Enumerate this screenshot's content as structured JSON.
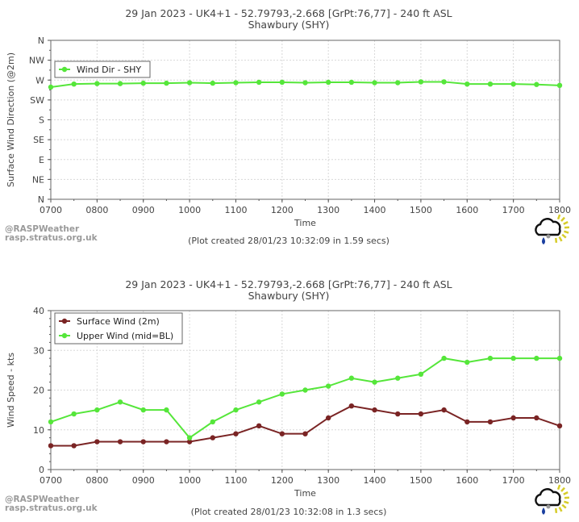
{
  "chart_data": [
    {
      "type": "line",
      "title": "29 Jan 2023 - UK4+1 - 52.79793,-2.668 [GrPt:76,77]  - 240 ft ASL",
      "subtitle": "Shawbury (SHY)",
      "xlabel": "Time",
      "ylabel": "Surface Wind Direction (@2m)",
      "x_tick_labels": [
        "0700",
        "0800",
        "0900",
        "1000",
        "1100",
        "1200",
        "1300",
        "1400",
        "1500",
        "1600",
        "1700",
        "1800"
      ],
      "y_tick_labels": [
        "N",
        "NE",
        "E",
        "SE",
        "S",
        "SW",
        "W",
        "NW",
        "N"
      ],
      "xlim": [
        7,
        18
      ],
      "ylim": [
        0,
        360
      ],
      "legend_position": "top-left",
      "series": [
        {
          "name": "Wind Dir - SHY",
          "color": "#55e63a",
          "x": [
            7,
            7.5,
            8,
            8.5,
            9,
            9.5,
            10,
            10.5,
            11,
            11.5,
            12,
            12.5,
            13,
            13.5,
            14,
            14.5,
            15,
            15.5,
            16,
            16.5,
            17,
            17.5,
            18
          ],
          "values": [
            254,
            261,
            262,
            262,
            263,
            263,
            264,
            263,
            264,
            265,
            265,
            264,
            265,
            265,
            264,
            264,
            266,
            266,
            261,
            261,
            261,
            260,
            258
          ]
        }
      ],
      "watermark": [
        "@RASPWeather",
        "rasp.stratus.org.uk"
      ],
      "footer": "(Plot created 28/01/23 10:32:09 in 1.59 secs)"
    },
    {
      "type": "line",
      "title": "29 Jan 2023 - UK4+1 - 52.79793,-2.668 [GrPt:76,77]  - 240 ft ASL",
      "subtitle": "Shawbury (SHY)",
      "xlabel": "Time",
      "ylabel": "Wind Speed - kts",
      "x_tick_labels": [
        "0700",
        "0800",
        "0900",
        "1000",
        "1100",
        "1200",
        "1300",
        "1400",
        "1500",
        "1600",
        "1700",
        "1800"
      ],
      "y_tick_labels": [
        "0",
        "10",
        "20",
        "30",
        "40"
      ],
      "xlim": [
        7,
        18
      ],
      "ylim": [
        0,
        40
      ],
      "legend_position": "top-left",
      "series": [
        {
          "name": "Surface Wind (2m)",
          "color": "#7a2424",
          "x": [
            7,
            7.5,
            8,
            8.5,
            9,
            9.5,
            10,
            10.5,
            11,
            11.5,
            12,
            12.5,
            13,
            13.5,
            14,
            14.5,
            15,
            15.5,
            16,
            16.5,
            17,
            17.5,
            18
          ],
          "values": [
            6,
            6,
            7,
            7,
            7,
            7,
            7,
            8,
            9,
            11,
            9,
            9,
            13,
            16,
            15,
            14,
            14,
            15,
            12,
            12,
            13,
            13,
            11
          ]
        },
        {
          "name": "Upper Wind (mid=BL)",
          "color": "#55e63a",
          "x": [
            7,
            7.5,
            8,
            8.5,
            9,
            9.5,
            10,
            10.5,
            11,
            11.5,
            12,
            12.5,
            13,
            13.5,
            14,
            14.5,
            15,
            15.5,
            16,
            16.5,
            17,
            17.5,
            18
          ],
          "values": [
            12,
            14,
            15,
            17,
            15,
            15,
            8,
            12,
            15,
            17,
            19,
            20,
            21,
            23,
            22,
            23,
            24,
            28,
            27,
            28,
            28,
            28,
            28
          ]
        }
      ],
      "watermark": [
        "@RASPWeather",
        "rasp.stratus.org.uk"
      ],
      "footer": "(Plot created 28/01/23 10:32:08 in 1.3 secs)"
    }
  ]
}
